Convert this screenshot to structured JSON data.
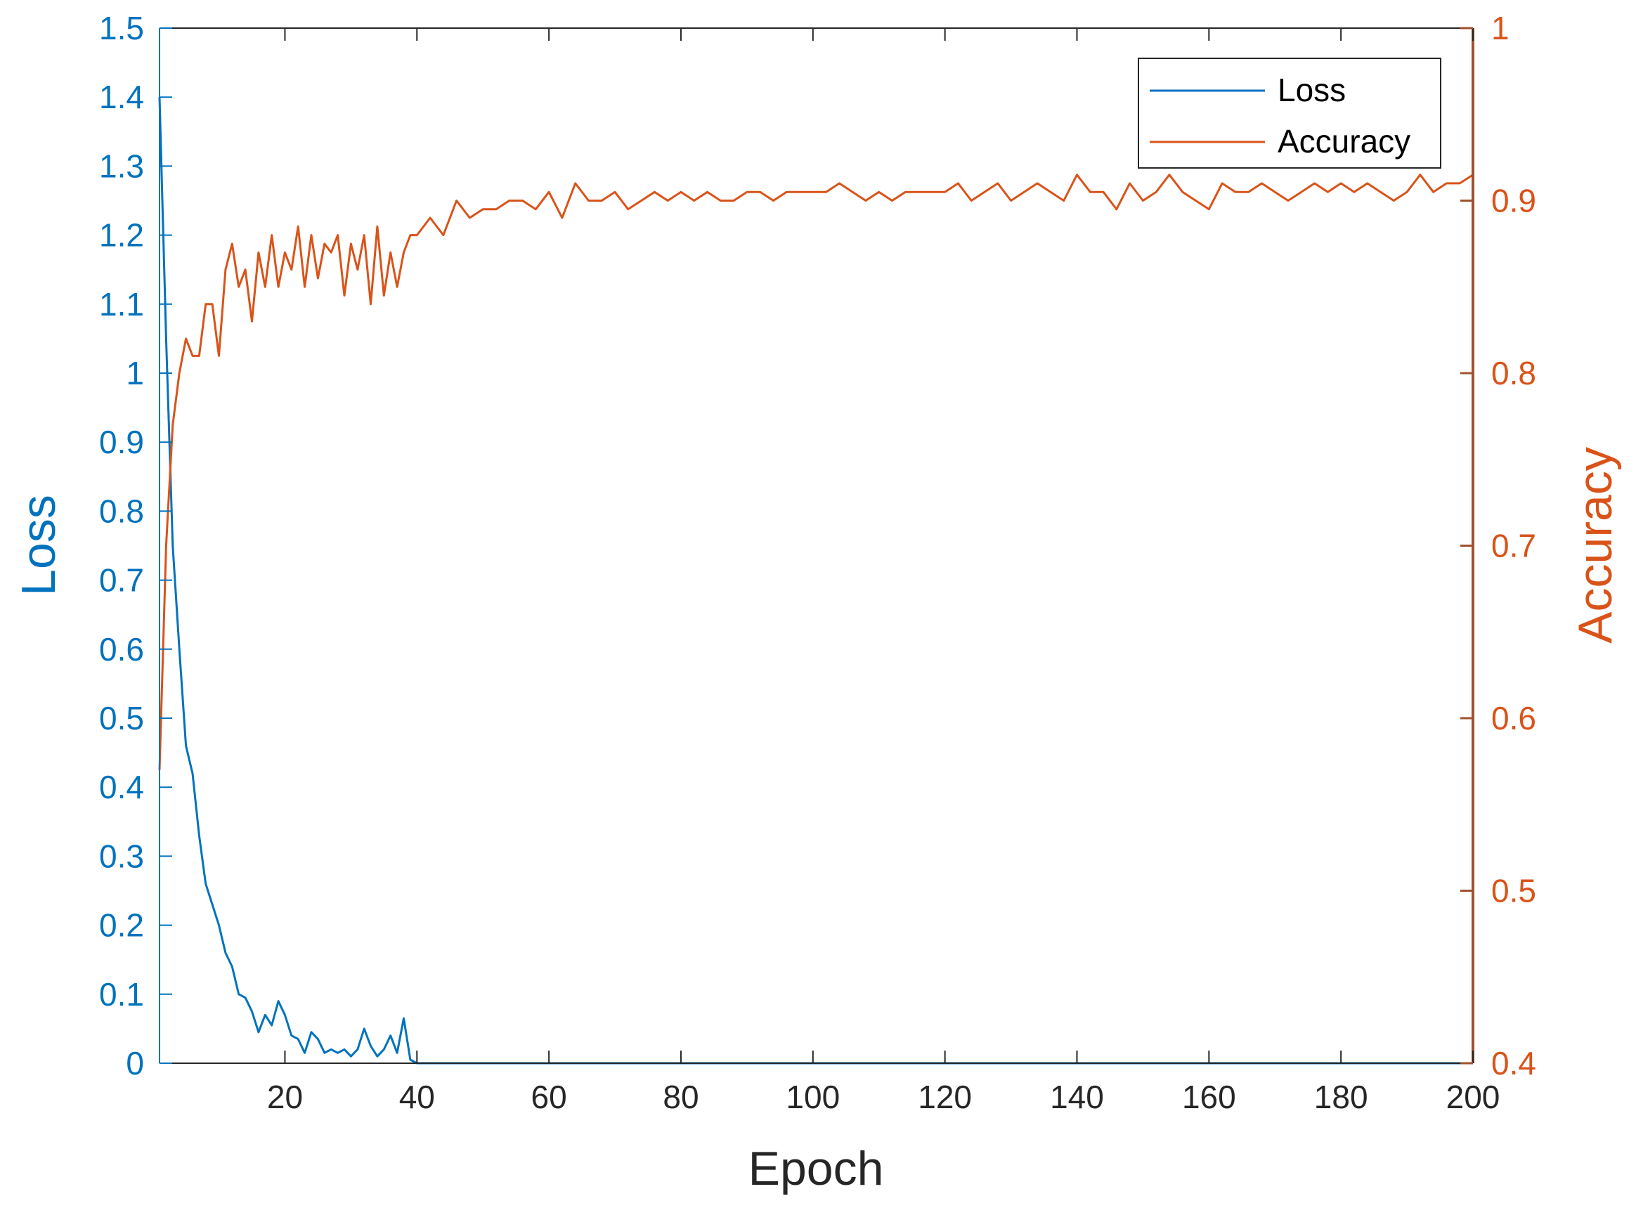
{
  "chart_data": {
    "type": "line",
    "xlabel": "Epoch",
    "ylabel_left": "Loss",
    "ylabel_right": "Accuracy",
    "xlim": [
      1,
      200
    ],
    "ylim_left": [
      0,
      1.5
    ],
    "ylim_right": [
      0.4,
      1
    ],
    "x_ticks": [
      20,
      40,
      60,
      80,
      100,
      120,
      140,
      160,
      180,
      200
    ],
    "y_ticks_left": [
      0,
      0.1,
      0.2,
      0.3,
      0.4,
      0.5,
      0.6,
      0.7,
      0.8,
      0.9,
      1,
      1.1,
      1.2,
      1.3,
      1.4,
      1.5
    ],
    "y_ticks_right": [
      0.4,
      0.5,
      0.6,
      0.7,
      0.8,
      0.9,
      1
    ],
    "grid": false,
    "legend_position": "top-right",
    "colors": {
      "loss": "#0072BD",
      "accuracy": "#D95319",
      "right_axis": "#A0522D"
    },
    "series": [
      {
        "name": "Loss",
        "axis": "left",
        "x": [
          1,
          2,
          3,
          4,
          5,
          6,
          7,
          8,
          9,
          10,
          11,
          12,
          13,
          14,
          15,
          16,
          17,
          18,
          19,
          20,
          21,
          22,
          23,
          24,
          25,
          26,
          27,
          28,
          29,
          30,
          31,
          32,
          33,
          34,
          35,
          36,
          37,
          38,
          39,
          40,
          45,
          50,
          60,
          80,
          100,
          120,
          140,
          160,
          180,
          200
        ],
        "y": [
          1.4,
          1.05,
          0.75,
          0.6,
          0.46,
          0.42,
          0.33,
          0.26,
          0.23,
          0.2,
          0.16,
          0.14,
          0.1,
          0.095,
          0.075,
          0.045,
          0.07,
          0.055,
          0.09,
          0.07,
          0.04,
          0.035,
          0.015,
          0.045,
          0.035,
          0.015,
          0.02,
          0.015,
          0.02,
          0.01,
          0.02,
          0.05,
          0.025,
          0.01,
          0.02,
          0.04,
          0.015,
          0.065,
          0.005,
          0.0,
          0.0,
          0.0,
          0.0,
          0.0,
          0.0,
          0.0,
          0.0,
          0.0,
          0.0,
          0.0
        ]
      },
      {
        "name": "Accuracy",
        "axis": "right",
        "x": [
          1,
          2,
          3,
          4,
          5,
          6,
          7,
          8,
          9,
          10,
          11,
          12,
          13,
          14,
          15,
          16,
          17,
          18,
          19,
          20,
          21,
          22,
          23,
          24,
          25,
          26,
          27,
          28,
          29,
          30,
          31,
          32,
          33,
          34,
          35,
          36,
          37,
          38,
          39,
          40,
          42,
          44,
          46,
          48,
          50,
          52,
          54,
          56,
          58,
          60,
          62,
          64,
          66,
          68,
          70,
          72,
          74,
          76,
          78,
          80,
          82,
          84,
          86,
          88,
          90,
          92,
          94,
          96,
          98,
          100,
          102,
          104,
          106,
          108,
          110,
          112,
          114,
          116,
          118,
          120,
          122,
          124,
          126,
          128,
          130,
          132,
          134,
          136,
          138,
          140,
          142,
          144,
          146,
          148,
          150,
          152,
          154,
          156,
          158,
          160,
          162,
          164,
          166,
          168,
          170,
          172,
          174,
          176,
          178,
          180,
          182,
          184,
          186,
          188,
          190,
          192,
          194,
          196,
          198,
          200
        ],
        "y": [
          0.57,
          0.7,
          0.77,
          0.8,
          0.82,
          0.81,
          0.81,
          0.84,
          0.84,
          0.81,
          0.86,
          0.875,
          0.85,
          0.86,
          0.83,
          0.87,
          0.85,
          0.88,
          0.85,
          0.87,
          0.86,
          0.885,
          0.85,
          0.88,
          0.855,
          0.875,
          0.87,
          0.88,
          0.845,
          0.875,
          0.86,
          0.88,
          0.84,
          0.885,
          0.845,
          0.87,
          0.85,
          0.87,
          0.88,
          0.88,
          0.89,
          0.88,
          0.9,
          0.89,
          0.895,
          0.895,
          0.9,
          0.9,
          0.895,
          0.905,
          0.89,
          0.91,
          0.9,
          0.9,
          0.905,
          0.895,
          0.9,
          0.905,
          0.9,
          0.905,
          0.9,
          0.905,
          0.9,
          0.9,
          0.905,
          0.905,
          0.9,
          0.905,
          0.905,
          0.905,
          0.905,
          0.91,
          0.905,
          0.9,
          0.905,
          0.9,
          0.905,
          0.905,
          0.905,
          0.905,
          0.91,
          0.9,
          0.905,
          0.91,
          0.9,
          0.905,
          0.91,
          0.905,
          0.9,
          0.915,
          0.905,
          0.905,
          0.895,
          0.91,
          0.9,
          0.905,
          0.915,
          0.905,
          0.9,
          0.895,
          0.91,
          0.905,
          0.905,
          0.91,
          0.905,
          0.9,
          0.905,
          0.91,
          0.905,
          0.91,
          0.905,
          0.91,
          0.905,
          0.9,
          0.905,
          0.915,
          0.905,
          0.91,
          0.91,
          0.915
        ]
      }
    ]
  }
}
